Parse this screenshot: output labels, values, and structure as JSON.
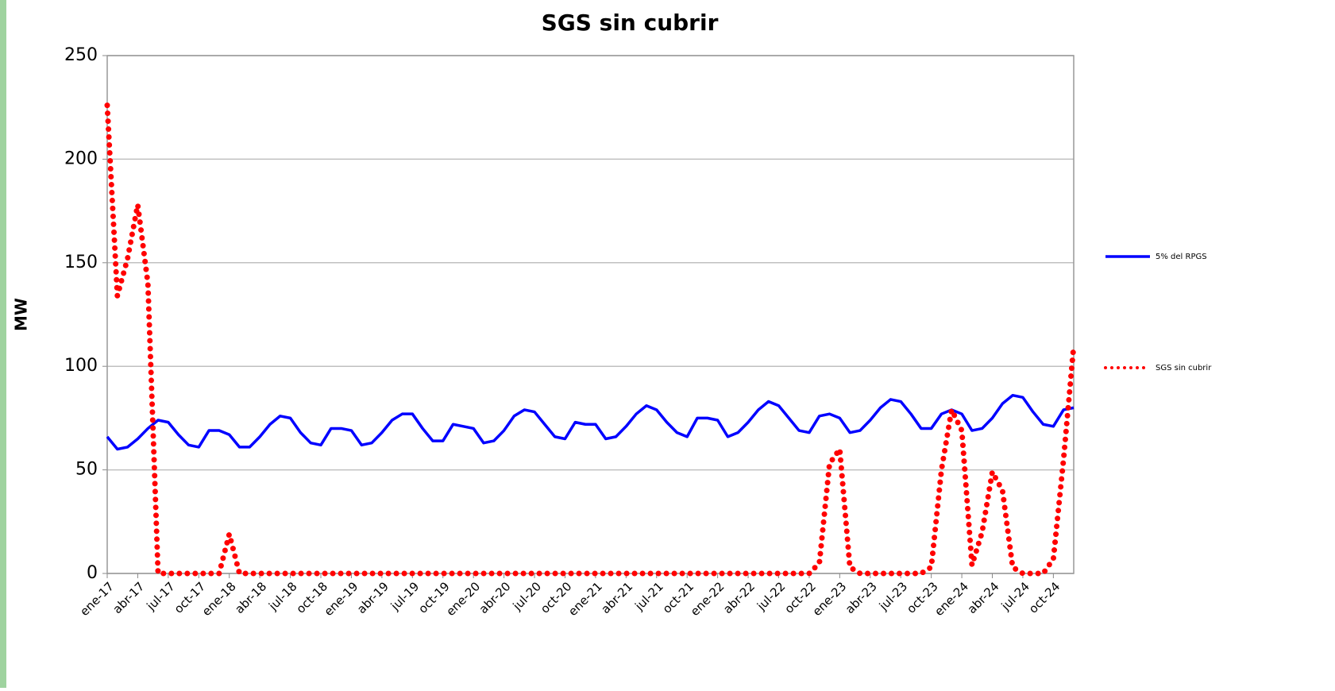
{
  "chart_data": {
    "type": "line",
    "title": "SGS sin cubrir",
    "y_label": "MW",
    "categories": [
      "ene-17",
      null,
      null,
      "abr-17",
      null,
      null,
      "jul-17",
      null,
      null,
      "oct-17",
      null,
      null,
      "ene-18",
      null,
      null,
      "abr-18",
      null,
      null,
      "jul-18",
      null,
      null,
      "oct-18",
      null,
      null,
      "ene-19",
      null,
      null,
      "abr-19",
      null,
      null,
      "jul-19",
      null,
      null,
      "oct-19",
      null,
      null,
      "ene-20",
      null,
      null,
      "abr-20",
      null,
      null,
      "jul-20",
      null,
      null,
      "oct-20",
      null,
      null,
      "ene-21",
      null,
      null,
      "abr-21",
      null,
      null,
      "jul-21",
      null,
      null,
      "oct-21",
      null,
      null,
      "ene-22",
      null,
      null,
      "abr-22",
      null,
      null,
      "jul-22",
      null,
      null,
      "oct-22",
      null,
      null,
      "ene-23",
      null,
      null,
      "abr-23",
      null,
      null,
      "jul-23",
      null,
      null,
      "oct-23",
      null,
      null,
      "ene-24",
      null,
      null,
      "abr-24",
      null,
      null,
      "jul-24",
      null,
      null,
      "oct-24",
      null,
      null
    ],
    "series": [
      {
        "name": "5% del RPGS",
        "color": "#0000ff",
        "style": "solid",
        "values": [
          66,
          60,
          61,
          65,
          70,
          74,
          73,
          67,
          62,
          61,
          69,
          69,
          67,
          61,
          61,
          66,
          72,
          76,
          75,
          68,
          63,
          62,
          70,
          70,
          69,
          62,
          63,
          68,
          74,
          77,
          77,
          70,
          64,
          64,
          72,
          71,
          70,
          63,
          64,
          69,
          76,
          79,
          78,
          72,
          66,
          65,
          73,
          72,
          72,
          65,
          66,
          71,
          77,
          81,
          79,
          73,
          68,
          66,
          75,
          75,
          74,
          66,
          68,
          73,
          79,
          83,
          81,
          75,
          69,
          68,
          76,
          77,
          75,
          68,
          69,
          74,
          80,
          84,
          83,
          77,
          70,
          70,
          77,
          79,
          77,
          69,
          70,
          75,
          82,
          86,
          85,
          78,
          72,
          71,
          79,
          80
        ]
      },
      {
        "name": "SGS sin cubrir",
        "color": "#ff0000",
        "style": "dotted",
        "values": [
          226,
          134,
          152,
          178,
          140,
          0,
          0,
          0,
          0,
          0,
          0,
          0,
          19,
          0,
          0,
          0,
          0,
          0,
          0,
          0,
          0,
          0,
          0,
          0,
          0,
          0,
          0,
          0,
          0,
          0,
          0,
          0,
          0,
          0,
          0,
          0,
          0,
          0,
          0,
          0,
          0,
          0,
          0,
          0,
          0,
          0,
          0,
          0,
          0,
          0,
          0,
          0,
          0,
          0,
          0,
          0,
          0,
          0,
          0,
          0,
          0,
          0,
          0,
          0,
          0,
          0,
          0,
          0,
          0,
          0,
          5,
          53,
          60,
          3,
          0,
          0,
          0,
          0,
          0,
          0,
          0,
          3,
          50,
          79,
          69,
          4,
          20,
          49,
          40,
          3,
          0,
          0,
          0,
          7,
          55,
          110
        ]
      }
    ],
    "ylim": [
      0,
      250
    ],
    "yticks": [
      0,
      50,
      100,
      150,
      200,
      250
    ],
    "grid": true,
    "legend": "right"
  }
}
